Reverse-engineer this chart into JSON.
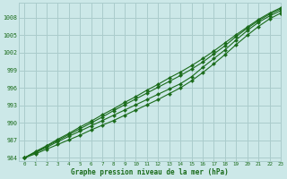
{
  "title": "Graphe pression niveau de la mer (hPa)",
  "bg_color": "#cce8e8",
  "grid_color": "#aacccc",
  "line_color": "#1a6b1a",
  "marker_color": "#1a6b1a",
  "xlim": [
    -0.5,
    23
  ],
  "ylim": [
    983.5,
    1010.5
  ],
  "yticks": [
    984,
    987,
    990,
    993,
    996,
    999,
    1002,
    1005,
    1008
  ],
  "xticks": [
    0,
    1,
    2,
    3,
    4,
    5,
    6,
    7,
    8,
    9,
    10,
    11,
    12,
    13,
    14,
    15,
    16,
    17,
    18,
    19,
    20,
    21,
    22,
    23
  ],
  "series": [
    [
      984.0,
      984.9,
      985.8,
      986.8,
      987.7,
      988.6,
      989.5,
      990.4,
      991.3,
      992.2,
      993.1,
      994.0,
      994.9,
      995.8,
      996.7,
      997.9,
      999.5,
      1001.0,
      1002.5,
      1004.2,
      1005.8,
      1007.2,
      1008.3,
      1009.2
    ],
    [
      984.0,
      985.0,
      986.0,
      987.0,
      988.0,
      989.0,
      990.0,
      991.0,
      992.1,
      993.1,
      994.1,
      995.1,
      996.1,
      997.1,
      998.1,
      999.2,
      1000.4,
      1001.8,
      1003.2,
      1004.8,
      1006.2,
      1007.5,
      1008.6,
      1009.5
    ],
    [
      984.0,
      985.1,
      986.1,
      987.2,
      988.2,
      989.3,
      990.3,
      991.4,
      992.4,
      993.5,
      994.5,
      995.6,
      996.6,
      997.7,
      998.7,
      999.8,
      1001.0,
      1002.3,
      1003.7,
      1005.1,
      1006.4,
      1007.7,
      1008.8,
      1009.7
    ],
    [
      984.0,
      984.7,
      985.5,
      986.3,
      987.1,
      987.9,
      988.8,
      989.6,
      990.4,
      991.3,
      992.2,
      993.1,
      994.0,
      995.0,
      996.0,
      997.2,
      998.6,
      1000.1,
      1001.7,
      1003.4,
      1005.0,
      1006.5,
      1007.8,
      1008.8
    ]
  ]
}
